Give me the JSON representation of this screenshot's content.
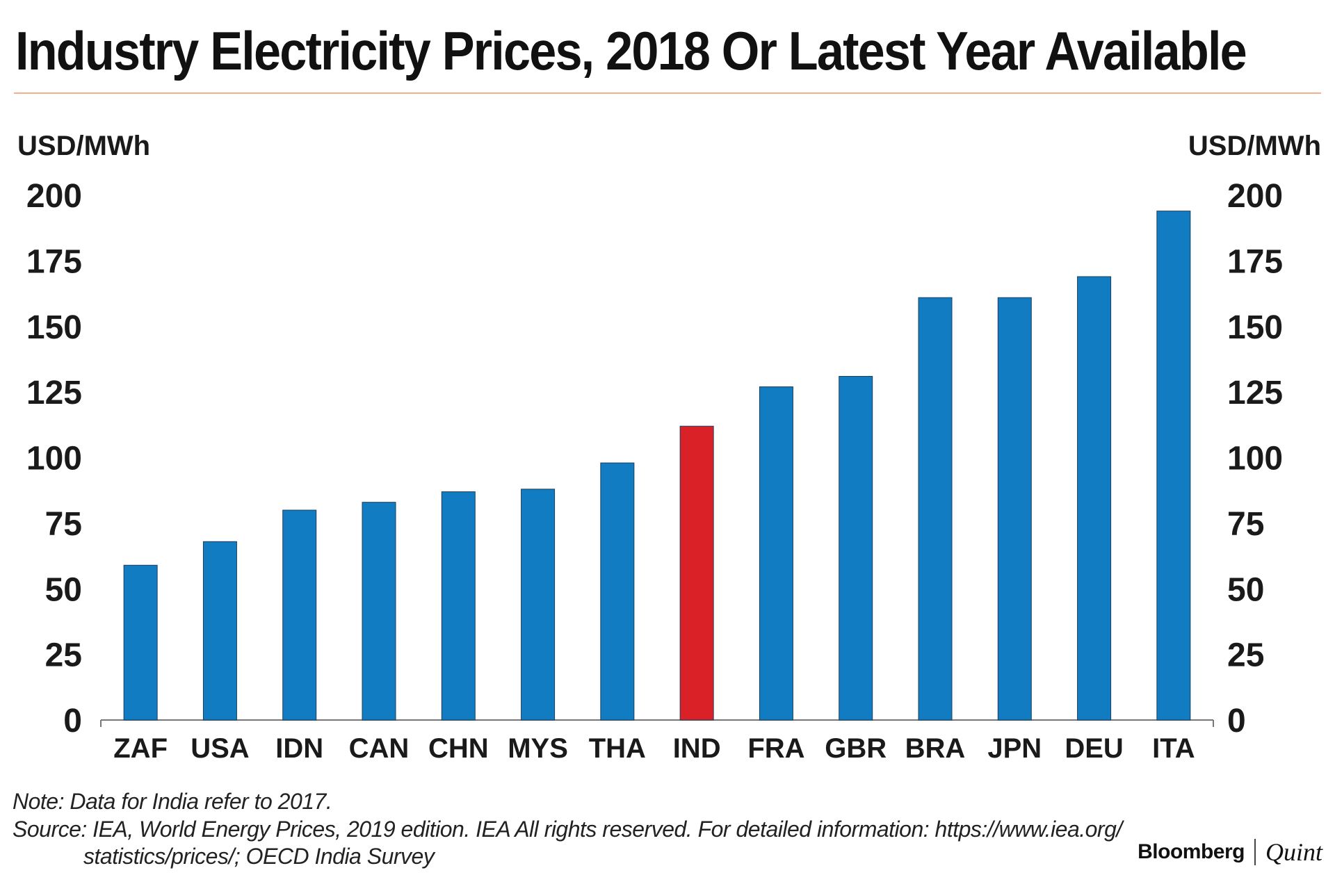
{
  "title": "Industry Electricity Prices, 2018 Or Latest Year Available",
  "footer": {
    "note": "Note: Data for India refer to 2017.",
    "source_line1": "Source: IEA, World Energy Prices, 2019 edition. IEA All rights reserved. For detailed information: https://www.iea.org/",
    "source_line2": "statistics/prices/; OECD India Survey"
  },
  "brand": {
    "name": "Bloomberg",
    "partner": "Quint"
  },
  "colors": {
    "bar": "#127CC2",
    "highlight": "#DB2128",
    "axis": "#777777",
    "title_rule": "#F3B08A"
  },
  "chart_data": {
    "type": "bar",
    "categories": [
      "ZAF",
      "USA",
      "IDN",
      "CAN",
      "CHN",
      "MYS",
      "THA",
      "IND",
      "FRA",
      "GBR",
      "BRA",
      "JPN",
      "DEU",
      "ITA"
    ],
    "values": [
      59,
      68,
      80,
      83,
      87,
      88,
      98,
      112,
      127,
      131,
      161,
      161,
      169,
      194
    ],
    "highlight_category": "IND",
    "y_unit_left": "USD/MWh",
    "y_unit_right": "USD/MWh",
    "ylim": [
      0,
      200
    ],
    "yticks": [
      0,
      25,
      50,
      75,
      100,
      125,
      150,
      175,
      200
    ],
    "grid": false,
    "legend": "none"
  }
}
